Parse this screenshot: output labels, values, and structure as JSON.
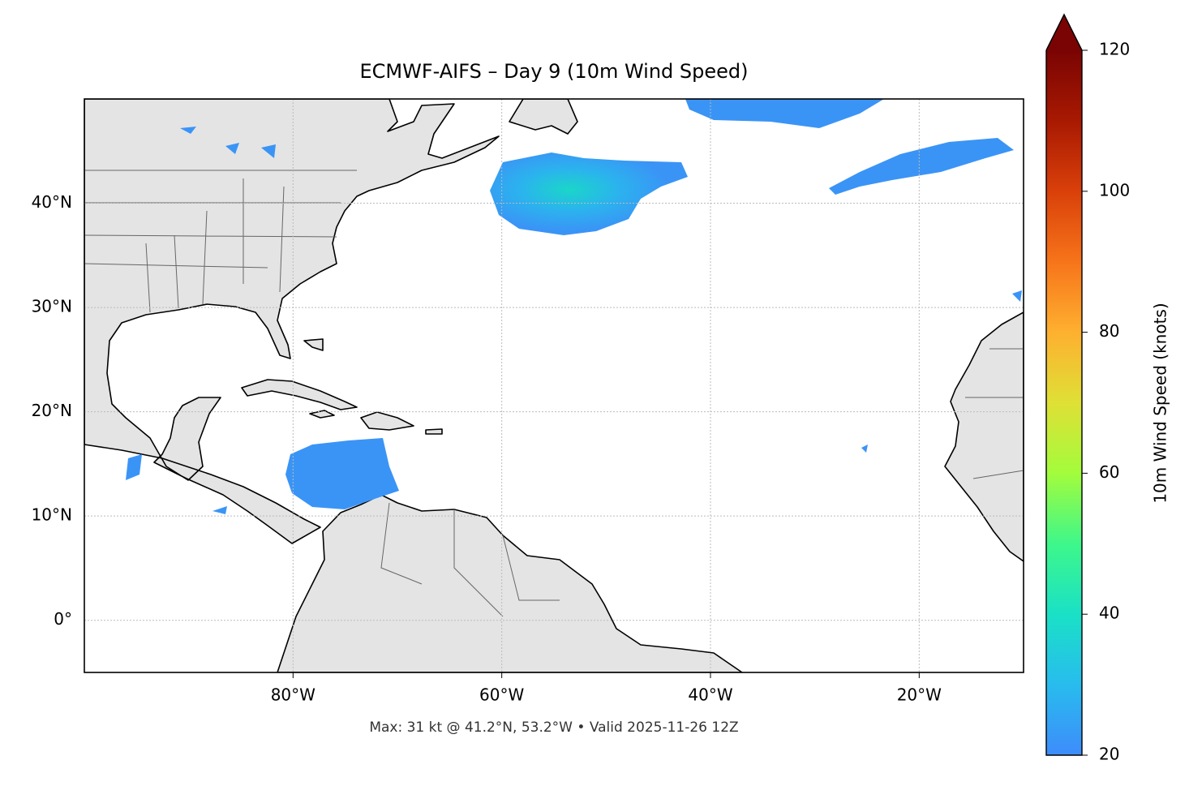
{
  "title": "ECMWF-AIFS – Day 9 (10m Wind Speed)",
  "footer": "Max: 31 kt @ 41.2°N, 53.2°W • Valid 2025-11-26 12Z",
  "map": {
    "lon_lim": [
      -100,
      -10
    ],
    "lat_lim": [
      -5,
      50
    ],
    "lon_ticks": [
      {
        "value": -80,
        "label": "80°W"
      },
      {
        "value": -60,
        "label": "60°W"
      },
      {
        "value": -40,
        "label": "40°W"
      },
      {
        "value": -20,
        "label": "20°W"
      }
    ],
    "lat_ticks": [
      {
        "value": 0,
        "label": "0°"
      },
      {
        "value": 10,
        "label": "10°N"
      },
      {
        "value": 20,
        "label": "20°N"
      },
      {
        "value": 30,
        "label": "30°N"
      },
      {
        "value": 40,
        "label": "40°N"
      }
    ],
    "grid": true
  },
  "colorbar": {
    "label": "10m Wind Speed (knots)",
    "lim": [
      20,
      120
    ],
    "ticks": [
      20,
      40,
      60,
      80,
      100,
      120
    ],
    "extend": "max"
  }
}
